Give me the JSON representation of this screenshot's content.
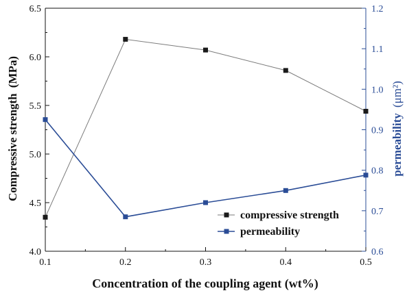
{
  "chart_data": {
    "type": "line",
    "x": [
      0.1,
      0.2,
      0.3,
      0.4,
      0.5
    ],
    "xlim": [
      0.1,
      0.5
    ],
    "xticks": [
      "0.1",
      "0.2",
      "0.3",
      "0.4",
      "0.5"
    ],
    "xlabel": "Concentration of the coupling agent (wt%)",
    "ylabel_left_main": "Compressive strength",
    "ylabel_left_unit": "(MPa)",
    "ylabel_right_main": "permeability",
    "ylabel_right_unit": "(μm²)",
    "ylim_left": [
      4.0,
      6.5
    ],
    "yticks_left": [
      "4.0",
      "4.5",
      "5.0",
      "5.5",
      "6.0",
      "6.5"
    ],
    "ylim_right": [
      0.6,
      1.2
    ],
    "yticks_right": [
      "0.6",
      "0.7",
      "0.8",
      "0.9",
      "1.0",
      "1.1",
      "1.2"
    ],
    "grid": false,
    "legend_position": "bottom-right",
    "series": [
      {
        "name": "compressive strength",
        "axis": "left",
        "color": "#1a1a1a",
        "line_color": "#7a7a7a",
        "values": [
          4.35,
          6.18,
          6.07,
          5.86,
          5.44
        ]
      },
      {
        "name": "permeability",
        "axis": "right",
        "color": "#2a4c96",
        "line_color": "#2a4c96",
        "values": [
          0.925,
          0.685,
          0.72,
          0.75,
          0.788
        ]
      }
    ]
  }
}
